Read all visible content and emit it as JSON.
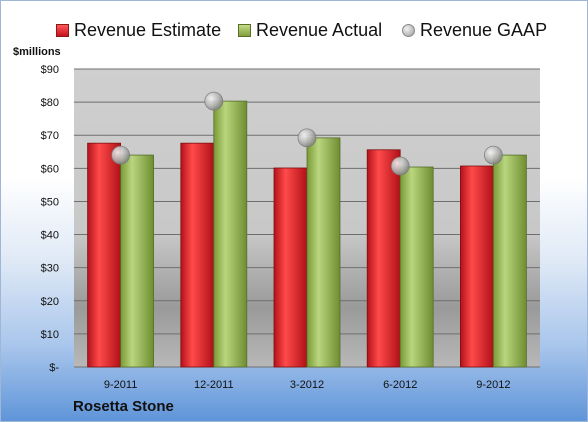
{
  "legend": {
    "estimate": "Revenue Estimate",
    "actual": "Revenue Actual",
    "gaap": "Revenue GAAP"
  },
  "unit_label": "$millions",
  "company": "Rosetta Stone",
  "colors": {
    "estimate": "#d7191c",
    "actual": "#9bbb59",
    "gaap": "#bfbfbf"
  },
  "chart_data": {
    "type": "bar",
    "categories": [
      "9-2011",
      "12-2011",
      "3-2012",
      "6-2012",
      "9-2012"
    ],
    "series": [
      {
        "name": "Revenue Estimate",
        "values": [
          67.6,
          67.6,
          60.1,
          65.6,
          60.7
        ]
      },
      {
        "name": "Revenue Actual",
        "values": [
          64.0,
          80.3,
          69.2,
          60.4,
          64.0
        ]
      },
      {
        "name": "Revenue GAAP",
        "values": [
          64.0,
          80.3,
          69.2,
          60.7,
          64.0
        ]
      }
    ],
    "ylabel": "$millions",
    "ylim": [
      0,
      90
    ],
    "y_ticks": [
      "$-",
      "$10",
      "$20",
      "$30",
      "$40",
      "$50",
      "$60",
      "$70",
      "$80",
      "$90"
    ],
    "grid": true,
    "legend_position": "top"
  }
}
